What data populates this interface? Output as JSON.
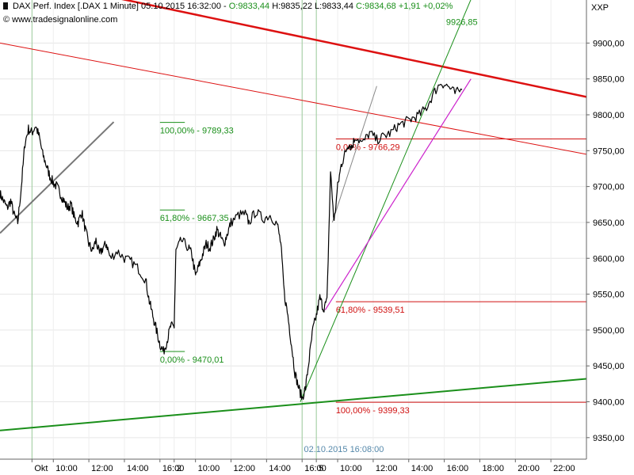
{
  "header": {
    "instrument": "DAX Perf. Index [.DAX",
    "interval": "1 Minute]",
    "datetime": "05.10.2015 16:32:00",
    "open": "O:9833,44",
    "high": "H:9835,22",
    "low": "L:9833,44",
    "close": "C:9834,68",
    "change": "+1,91 +0,02%"
  },
  "source": "© www.tradesignalonline.com",
  "currency": "XXP",
  "chart_data": {
    "type": "line",
    "title": "",
    "xlabel": "",
    "ylabel": "",
    "ylim": [
      9320,
      9960
    ],
    "y_ticks": [
      9350,
      9400,
      9450,
      9500,
      9550,
      9600,
      9650,
      9700,
      9750,
      9800,
      9850,
      9900
    ],
    "y_tick_labels": [
      "9350,00",
      "9400,00",
      "9450,00",
      "9500,00",
      "9550,00",
      "9600,00",
      "9650,00",
      "9700,00",
      "9750,00",
      "9800,00",
      "9850,00",
      "9900,00"
    ],
    "x_tick_labels": [
      "Okt",
      "10:00",
      "12:00",
      "14:00",
      "16:00",
      "2",
      "10:00",
      "12:00",
      "14:00",
      "16:00",
      "5",
      "10:00",
      "12:00",
      "14:00",
      "16:00",
      "18:00",
      "20:00",
      "22:00"
    ],
    "x_tick_t": [
      0.8,
      2.0,
      4.0,
      6.0,
      8.0,
      8.8,
      10.0,
      12.0,
      14.0,
      16.0,
      16.8,
      18.0,
      20.0,
      22.0,
      24.0,
      26.0,
      28.0,
      30.0
    ],
    "x_range": [
      -1.0,
      32.0
    ],
    "session_separators_t": [
      0.8,
      16.0,
      16.8
    ],
    "grid": true,
    "price_series": [
      [
        -1.0,
        9690
      ],
      [
        -0.8,
        9680
      ],
      [
        -0.6,
        9670
      ],
      [
        -0.4,
        9680
      ],
      [
        -0.2,
        9660
      ],
      [
        0.0,
        9650
      ],
      [
        0.2,
        9700
      ],
      [
        0.4,
        9760
      ],
      [
        0.6,
        9780
      ],
      [
        0.8,
        9775
      ],
      [
        1.0,
        9785
      ],
      [
        1.2,
        9770
      ],
      [
        1.4,
        9745
      ],
      [
        1.6,
        9730
      ],
      [
        1.8,
        9715
      ],
      [
        2.0,
        9705
      ],
      [
        2.2,
        9700
      ],
      [
        2.4,
        9690
      ],
      [
        2.6,
        9680
      ],
      [
        2.8,
        9670
      ],
      [
        3.0,
        9675
      ],
      [
        3.2,
        9655
      ],
      [
        3.4,
        9650
      ],
      [
        3.6,
        9665
      ],
      [
        3.8,
        9640
      ],
      [
        4.0,
        9620
      ],
      [
        4.2,
        9610
      ],
      [
        4.4,
        9625
      ],
      [
        4.6,
        9605
      ],
      [
        4.8,
        9615
      ],
      [
        5.0,
        9620
      ],
      [
        5.2,
        9600
      ],
      [
        5.6,
        9610
      ],
      [
        6.0,
        9600
      ],
      [
        6.4,
        9595
      ],
      [
        6.8,
        9585
      ],
      [
        7.2,
        9570
      ],
      [
        7.4,
        9540
      ],
      [
        7.6,
        9520
      ],
      [
        7.8,
        9500
      ],
      [
        8.0,
        9480
      ],
      [
        8.2,
        9470
      ],
      [
        8.4,
        9485
      ],
      [
        8.6,
        9505
      ],
      [
        8.8,
        9505
      ],
      [
        8.9,
        9610
      ],
      [
        9.2,
        9625
      ],
      [
        9.6,
        9615
      ],
      [
        9.8,
        9605
      ],
      [
        10.0,
        9575
      ],
      [
        10.2,
        9590
      ],
      [
        10.4,
        9605
      ],
      [
        10.6,
        9620
      ],
      [
        10.8,
        9615
      ],
      [
        11.0,
        9625
      ],
      [
        11.2,
        9640
      ],
      [
        11.4,
        9630
      ],
      [
        11.6,
        9620
      ],
      [
        11.8,
        9635
      ],
      [
        12.0,
        9650
      ],
      [
        12.4,
        9660
      ],
      [
        12.8,
        9662
      ],
      [
        13.0,
        9650
      ],
      [
        13.4,
        9665
      ],
      [
        13.8,
        9655
      ],
      [
        14.2,
        9660
      ],
      [
        14.6,
        9648
      ],
      [
        14.8,
        9620
      ],
      [
        15.0,
        9550
      ],
      [
        15.2,
        9520
      ],
      [
        15.4,
        9480
      ],
      [
        15.6,
        9440
      ],
      [
        15.8,
        9420
      ],
      [
        16.0,
        9405
      ],
      [
        16.2,
        9420
      ],
      [
        16.4,
        9460
      ],
      [
        16.6,
        9500
      ],
      [
        16.8,
        9520
      ],
      [
        17.0,
        9545
      ],
      [
        17.2,
        9530
      ],
      [
        17.4,
        9540
      ],
      [
        17.6,
        9720
      ],
      [
        17.8,
        9650
      ],
      [
        18.0,
        9700
      ],
      [
        18.2,
        9730
      ],
      [
        18.4,
        9745
      ],
      [
        18.6,
        9760
      ],
      [
        18.8,
        9755
      ],
      [
        19.0,
        9770
      ],
      [
        19.4,
        9760
      ],
      [
        19.8,
        9775
      ],
      [
        20.2,
        9765
      ],
      [
        20.6,
        9770
      ],
      [
        21.0,
        9775
      ],
      [
        21.4,
        9785
      ],
      [
        21.8,
        9790
      ],
      [
        22.2,
        9795
      ],
      [
        22.6,
        9800
      ],
      [
        23.0,
        9810
      ],
      [
        23.4,
        9830
      ],
      [
        23.8,
        9845
      ],
      [
        24.2,
        9840
      ],
      [
        24.6,
        9830
      ],
      [
        25.0,
        9835
      ]
    ],
    "fibonacci": [
      {
        "label": "100,00% - 9789,33",
        "value": 9789.33,
        "color": "#1a8f1a",
        "t_start": 8.0,
        "t_end": 9.4
      },
      {
        "label": "61,80% - 9667,35",
        "value": 9667.35,
        "color": "#1a8f1a",
        "t_start": 8.0,
        "t_end": 9.4
      },
      {
        "label": "0,00% - 9470,01",
        "value": 9470.01,
        "color": "#1a8f1a",
        "t_start": 8.0,
        "t_end": 9.4
      },
      {
        "label": "0,00% - 9766,29",
        "value": 9766.29,
        "color": "#d01010",
        "t_start": 17.9,
        "t_end": 32.0
      },
      {
        "label": "61,80% - 9539,51",
        "value": 9539.51,
        "color": "#d01010",
        "t_start": 17.9,
        "t_end": 32.0
      },
      {
        "label": "100,00% - 9399,33",
        "value": 9399.33,
        "color": "#d01010",
        "t_start": 17.9,
        "t_end": 32.0
      }
    ],
    "trendlines": [
      {
        "color": "#dd1111",
        "width": 2.5,
        "t0": -1.0,
        "v0": 9997,
        "t1": 32.0,
        "v1": 9825
      },
      {
        "color": "#dd1111",
        "width": 1,
        "t0": -1.0,
        "v0": 9900,
        "t1": 32.0,
        "v1": 9745
      },
      {
        "color": "#1a8f1a",
        "width": 2,
        "t0": -1.0,
        "v0": 9360,
        "t1": 32.0,
        "v1": 9432
      },
      {
        "color": "#1a8f1a",
        "width": 1,
        "t0": 15.9,
        "v0": 9400,
        "t1": 26.0,
        "v1": 9990
      },
      {
        "color": "#cc22cc",
        "width": 1.2,
        "t0": 17.3,
        "v0": 9528,
        "t1": 25.5,
        "v1": 9850
      },
      {
        "color": "#888888",
        "width": 1,
        "t0": 17.7,
        "v0": 9650,
        "t1": 20.2,
        "v1": 9840
      },
      {
        "color": "#777777",
        "width": 2,
        "t0": -1.0,
        "v0": 9635,
        "t1": 5.4,
        "v1": 9790
      }
    ],
    "annotations": [
      {
        "text": "9926,85",
        "t": 24.1,
        "v": 9925,
        "color": "#1a8f1a"
      },
      {
        "text": "02.10.2015 16:08:00",
        "t": 16.1,
        "v": 9330,
        "color": "#5588aa"
      }
    ]
  }
}
